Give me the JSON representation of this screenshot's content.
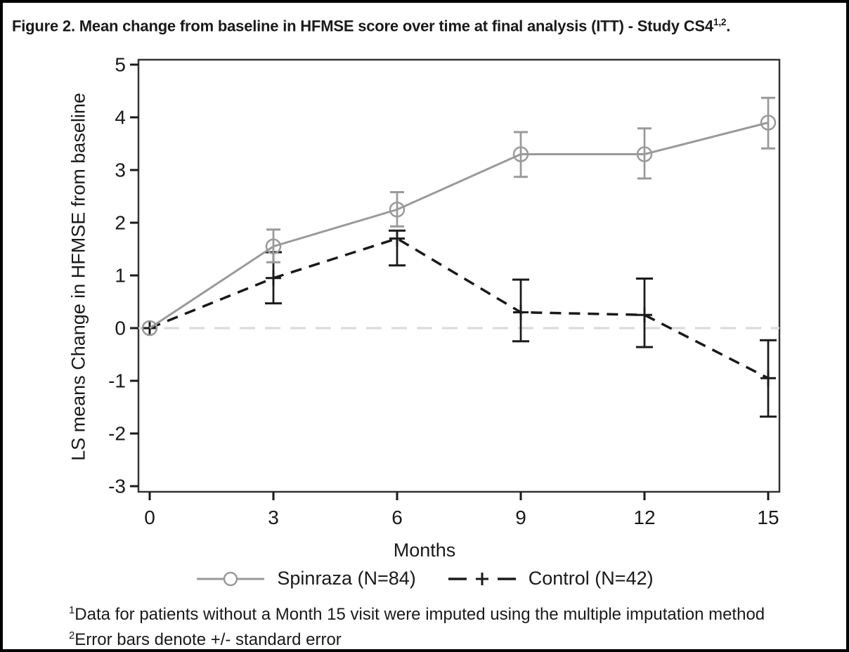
{
  "header": {
    "title_main": "Figure 2. Mean change from baseline in HFMSE score over time at final analysis (ITT) - Study CS4",
    "title_sup": "1,2",
    "title_end": "."
  },
  "axes": {
    "xlabel": "Months",
    "ylabel": "LS means Change in HFMSE from baseline"
  },
  "legend": {
    "items": [
      {
        "label": "Spinraza (N=84)"
      },
      {
        "label": "Control (N=42)"
      }
    ]
  },
  "footnotes": [
    {
      "sup": "1",
      "text": "Data for patients without a Month 15 visit were imputed using the multiple imputation method"
    },
    {
      "sup": "2",
      "text": "Error bars denote +/- standard error"
    }
  ],
  "colors": {
    "spinraza": "#9a9a9a",
    "control": "#1a1a1a",
    "zero_line": "#d9d9d9",
    "frame": "#333333",
    "text": "#1a1a1a"
  },
  "chart_data": {
    "type": "line",
    "title": "Figure 2. Mean change from baseline in HFMSE score over time at final analysis (ITT) - Study CS4¹,².",
    "xlabel": "Months",
    "ylabel": "LS means Change in HFMSE from baseline",
    "x": [
      0,
      3,
      6,
      9,
      12,
      15
    ],
    "x_tick_labels": [
      "0",
      "3",
      "6",
      "9",
      "12",
      "15"
    ],
    "y_ticks": [
      5,
      4,
      3,
      2,
      1,
      0,
      -1,
      -2,
      -3
    ],
    "ylim": [
      -3.5,
      5.25
    ],
    "xlim": [
      0,
      15
    ],
    "grid": false,
    "reference_line_y": 0,
    "legend_position": "bottom",
    "error_bars": "+/- standard error",
    "series": [
      {
        "name": "Spinraza (N=84)",
        "marker": "circle",
        "line_style": "solid",
        "values": [
          0,
          1.55,
          2.25,
          3.3,
          3.3,
          3.9
        ],
        "error_low": [
          null,
          1.25,
          1.93,
          2.87,
          2.84,
          3.41
        ],
        "error_high": [
          null,
          1.87,
          2.58,
          3.72,
          3.79,
          4.37
        ]
      },
      {
        "name": "Control (N=42)",
        "marker": "plus",
        "line_style": "dashed",
        "values": [
          0,
          0.95,
          1.7,
          0.3,
          0.25,
          -0.95
        ],
        "error_low": [
          null,
          0.47,
          1.19,
          -0.25,
          -0.36,
          -1.68
        ],
        "error_high": [
          null,
          1.44,
          1.85,
          0.92,
          0.94,
          -0.23
        ]
      }
    ]
  }
}
